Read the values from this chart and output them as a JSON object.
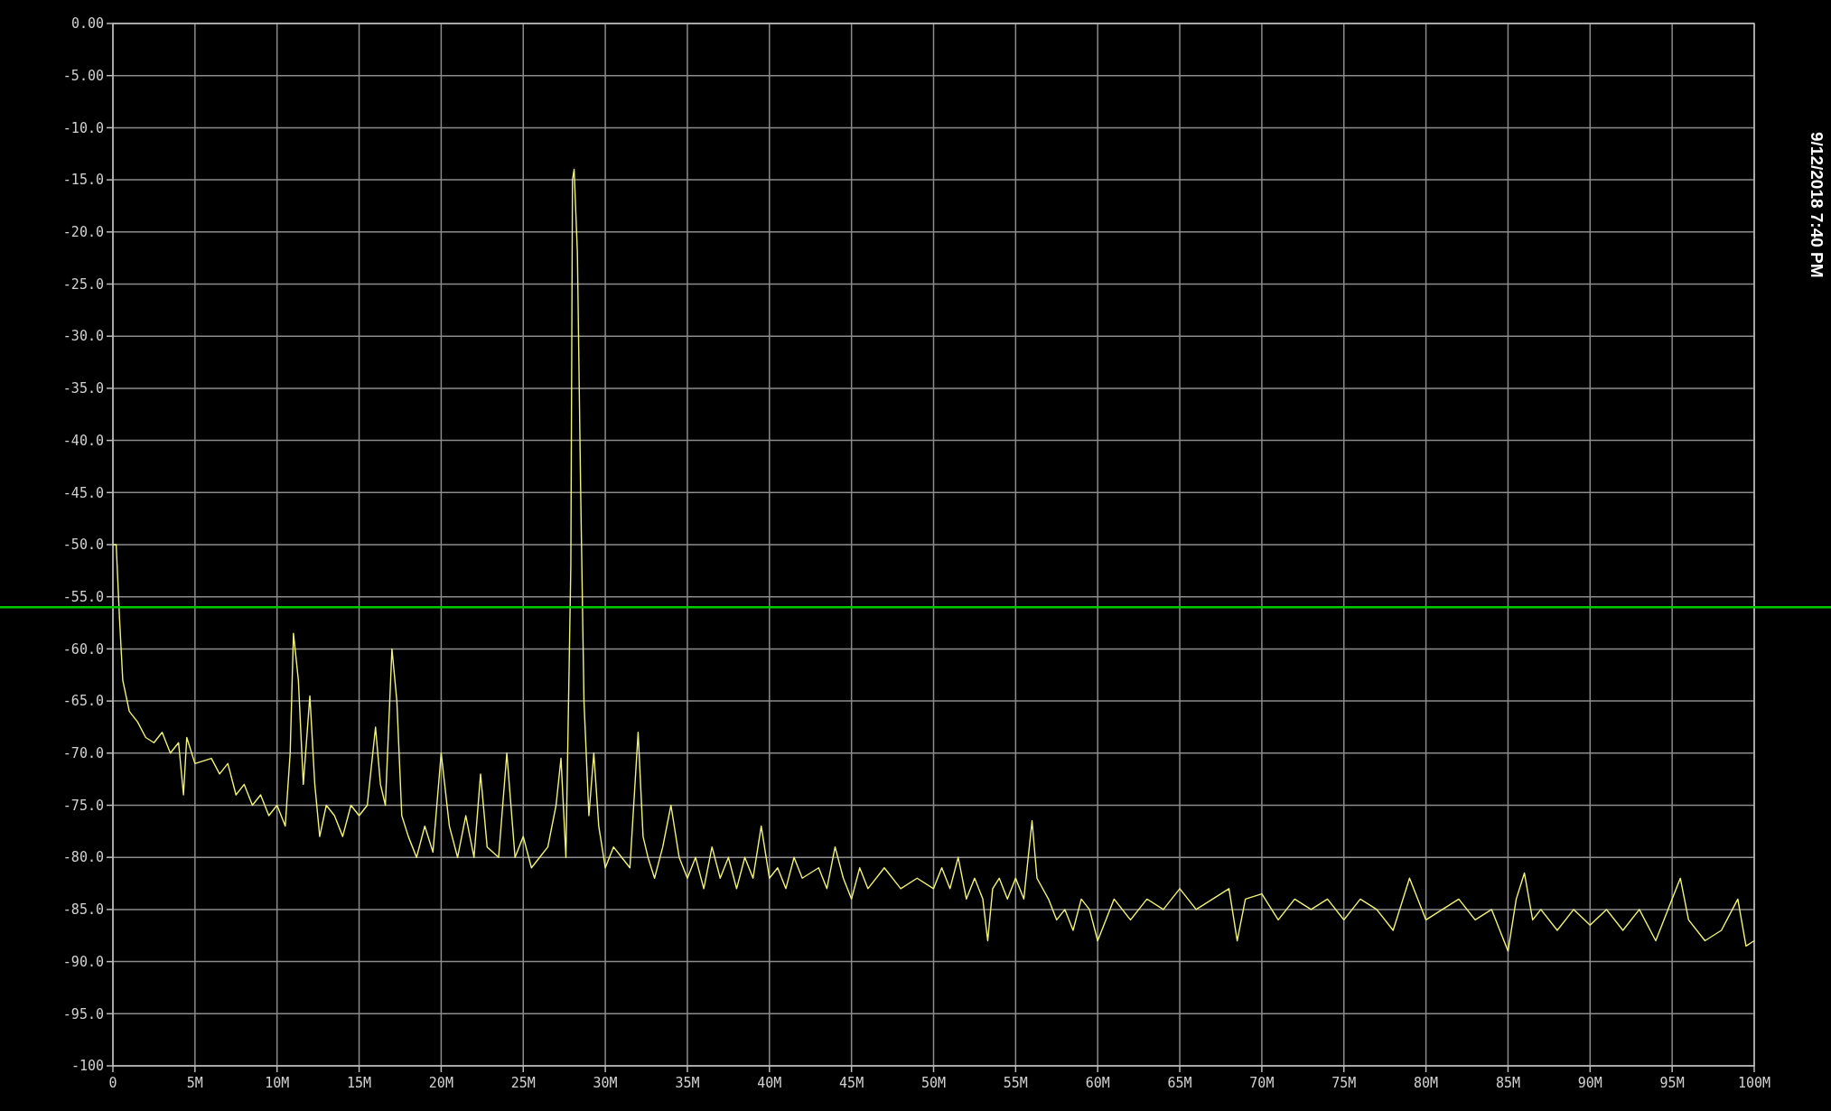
{
  "chart_data": {
    "type": "line",
    "series": [
      {
        "color": "#f2f27a",
        "x": [
          0,
          0.2,
          0.4,
          0.6,
          1,
          1.5,
          2,
          2.5,
          3,
          3.5,
          4,
          4.3,
          4.5,
          5,
          6,
          6.5,
          7,
          7.5,
          8,
          8.5,
          9,
          9.5,
          10,
          10.5,
          10.8,
          11,
          11.3,
          11.6,
          12,
          12.3,
          12.6,
          13,
          13.5,
          14,
          14.5,
          15,
          15.5,
          16,
          16.3,
          16.6,
          17,
          17.3,
          17.6,
          18,
          18.5,
          19,
          19.5,
          20,
          20.5,
          21,
          21.5,
          22,
          22.4,
          22.8,
          23.5,
          24,
          24.5,
          25,
          25.5,
          26,
          26.5,
          27,
          27.3,
          27.6,
          27.9,
          28,
          28.1,
          28.3,
          28.5,
          28.7,
          29,
          29.3,
          29.6,
          30,
          30.5,
          31,
          31.5,
          32,
          32.3,
          32.6,
          33,
          33.5,
          34,
          34.5,
          35,
          35.5,
          36,
          36.5,
          37,
          37.5,
          38,
          38.5,
          39,
          39.5,
          40,
          40.5,
          41,
          41.5,
          42,
          43,
          43.5,
          44,
          44.5,
          45,
          45.5,
          46,
          47,
          48,
          49,
          50,
          50.5,
          51,
          51.5,
          52,
          52.5,
          53,
          53.3,
          53.6,
          54,
          54.5,
          55,
          55.5,
          56,
          56.3,
          57,
          57.5,
          58,
          58.5,
          59,
          59.5,
          60,
          61,
          62,
          63,
          64,
          65,
          66,
          67,
          68,
          68.5,
          69,
          70,
          71,
          72,
          73,
          74,
          75,
          76,
          77,
          78,
          79,
          80,
          81,
          82,
          83,
          84,
          85,
          85.5,
          86,
          86.5,
          87,
          88,
          89,
          90,
          91,
          92,
          93,
          94,
          95,
          95.5,
          96,
          97,
          98,
          99,
          99.5,
          100
        ],
        "values": [
          -50,
          -50,
          -57,
          -63,
          -66,
          -67,
          -68.5,
          -69,
          -68,
          -70,
          -69,
          -74,
          -68.5,
          -71,
          -70.5,
          -72,
          -71,
          -74,
          -73,
          -75,
          -74,
          -76,
          -75,
          -77,
          -70,
          -58.5,
          -63,
          -73,
          -64.5,
          -73,
          -78,
          -75,
          -76,
          -78,
          -75,
          -76,
          -75,
          -67.5,
          -73,
          -75,
          -60,
          -65,
          -76,
          -78,
          -80,
          -77,
          -79.5,
          -70,
          -77,
          -80,
          -76,
          -80,
          -72,
          -79,
          -80,
          -70,
          -80,
          -78,
          -81,
          -80,
          -79,
          -75,
          -70.5,
          -80,
          -52,
          -15,
          -14,
          -22,
          -45,
          -65,
          -76,
          -70,
          -77,
          -81,
          -79,
          -80,
          -81,
          -68,
          -78,
          -80,
          -82,
          -79,
          -75,
          -80,
          -82,
          -80,
          -83,
          -79,
          -82,
          -80,
          -83,
          -80,
          -82,
          -77,
          -82,
          -81,
          -83,
          -80,
          -82,
          -81,
          -83,
          -79,
          -82,
          -84,
          -81,
          -83,
          -81,
          -83,
          -82,
          -83,
          -81,
          -83,
          -80,
          -84,
          -82,
          -84,
          -88,
          -83,
          -82,
          -84,
          -82,
          -84,
          -76.5,
          -82,
          -84,
          -86,
          -85,
          -87,
          -84,
          -85,
          -88,
          -84,
          -86,
          -84,
          -85,
          -83,
          -85,
          -84,
          -83,
          -88,
          -84,
          -83.5,
          -86,
          -84,
          -85,
          -84,
          -86,
          -84,
          -85,
          -87,
          -82,
          -86,
          -85,
          -84,
          -86,
          -85,
          -89,
          -84,
          -81.5,
          -86,
          -85,
          -87,
          -85,
          -86.5,
          -85,
          -87,
          -85,
          -88,
          -84,
          -82,
          -86,
          -88,
          -87,
          -84,
          -88.5,
          -88
        ]
      }
    ],
    "xlim": [
      0,
      100
    ],
    "xticks": [
      0,
      {
        "value": 5,
        "label": "5M"
      },
      {
        "value": 10,
        "label": "10M"
      },
      {
        "value": 15,
        "label": "15M"
      },
      {
        "value": 20,
        "label": "20M"
      },
      {
        "value": 25,
        "label": "25M"
      },
      {
        "value": 30,
        "label": "30M"
      },
      {
        "value": 35,
        "label": "35M"
      },
      {
        "value": 40,
        "label": "40M"
      },
      {
        "value": 45,
        "label": "45M"
      },
      {
        "value": 50,
        "label": "50M"
      },
      {
        "value": 55,
        "label": "55M"
      },
      {
        "value": 60,
        "label": "60M"
      },
      {
        "value": 65,
        "label": "65M"
      },
      {
        "value": 70,
        "label": "70M"
      },
      {
        "value": 75,
        "label": "75M"
      },
      {
        "value": 80,
        "label": "80M"
      },
      {
        "value": 85,
        "label": "85M"
      },
      {
        "value": 90,
        "label": "90M"
      },
      {
        "value": 95,
        "label": "95M"
      },
      {
        "value": 100,
        "label": "100M"
      }
    ],
    "ylim": [
      -100,
      0
    ],
    "yticks": [
      {
        "value": 0,
        "label": "0.00"
      },
      {
        "value": -5,
        "label": "-5.00"
      },
      {
        "value": -10,
        "label": "-10.0"
      },
      {
        "value": -15,
        "label": "-15.0"
      },
      {
        "value": -20,
        "label": "-20.0"
      },
      {
        "value": -25,
        "label": "-25.0"
      },
      {
        "value": -30,
        "label": "-30.0"
      },
      {
        "value": -35,
        "label": "-35.0"
      },
      {
        "value": -40,
        "label": "-40.0"
      },
      {
        "value": -45,
        "label": "-45.0"
      },
      {
        "value": -50,
        "label": "-50.0"
      },
      {
        "value": -55,
        "label": "-55.0"
      },
      {
        "value": -60,
        "label": "-60.0"
      },
      {
        "value": -65,
        "label": "-65.0"
      },
      {
        "value": -70,
        "label": "-70.0"
      },
      {
        "value": -75,
        "label": "-75.0"
      },
      {
        "value": -80,
        "label": "-80.0"
      },
      {
        "value": -85,
        "label": "-85.0"
      },
      {
        "value": -90,
        "label": "-90.0"
      },
      {
        "value": -95,
        "label": "-95.0"
      },
      -100
    ],
    "grid": true,
    "ref_lines": [
      {
        "axis": "y",
        "value": -56,
        "color": "#00cc00"
      }
    ],
    "annotations": [
      "9/12/2018 7:40 PM"
    ]
  }
}
